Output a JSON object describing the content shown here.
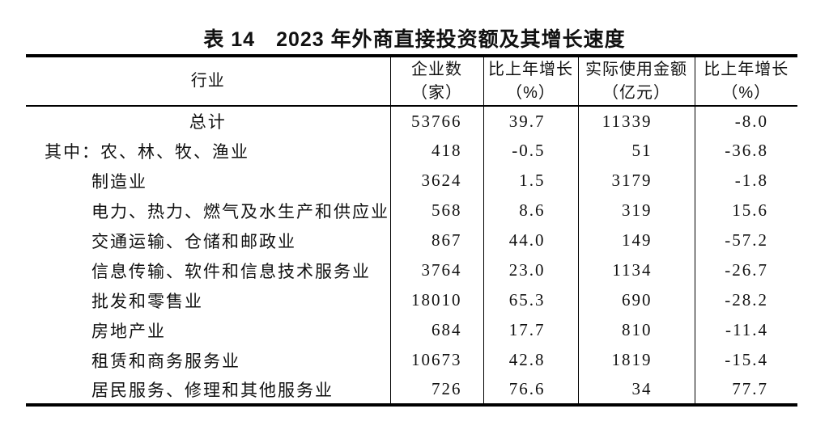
{
  "page": {
    "title": "表 14　2023 年外商直接投资额及其增长速度"
  },
  "table": {
    "columns": [
      {
        "label": "行业",
        "unit": ""
      },
      {
        "label": "企业数",
        "unit": "（家）"
      },
      {
        "label": "比上年增长",
        "unit": "（%）"
      },
      {
        "label": "实际使用金额",
        "unit": "（亿元）"
      },
      {
        "label": "比上年增长",
        "unit": "（%）"
      }
    ],
    "rows": [
      {
        "prefix": "",
        "industry": "总计",
        "enterprises": "53766",
        "growth_enterprises": "39.7",
        "amount": "11339",
        "growth_amount": "-8.0"
      },
      {
        "prefix": "其中：",
        "industry": "农、林、牧、渔业",
        "enterprises": "418",
        "growth_enterprises": "-0.5",
        "amount": "51",
        "growth_amount": "-36.8"
      },
      {
        "prefix": "",
        "industry": "制造业",
        "enterprises": "3624",
        "growth_enterprises": "1.5",
        "amount": "3179",
        "growth_amount": "-1.8"
      },
      {
        "prefix": "",
        "industry": "电力、热力、燃气及水生产和供应业",
        "enterprises": "568",
        "growth_enterprises": "8.6",
        "amount": "319",
        "growth_amount": "15.6"
      },
      {
        "prefix": "",
        "industry": "交通运输、仓储和邮政业",
        "enterprises": "867",
        "growth_enterprises": "44.0",
        "amount": "149",
        "growth_amount": "-57.2"
      },
      {
        "prefix": "",
        "industry": "信息传输、软件和信息技术服务业",
        "enterprises": "3764",
        "growth_enterprises": "23.0",
        "amount": "1134",
        "growth_amount": "-26.7"
      },
      {
        "prefix": "",
        "industry": "批发和零售业",
        "enterprises": "18010",
        "growth_enterprises": "65.3",
        "amount": "690",
        "growth_amount": "-28.2"
      },
      {
        "prefix": "",
        "industry": "房地产业",
        "enterprises": "684",
        "growth_enterprises": "17.7",
        "amount": "810",
        "growth_amount": "-11.4"
      },
      {
        "prefix": "",
        "industry": "租赁和商务服务业",
        "enterprises": "10673",
        "growth_enterprises": "42.8",
        "amount": "1819",
        "growth_amount": "-15.4"
      },
      {
        "prefix": "",
        "industry": "居民服务、修理和其他服务业",
        "enterprises": "726",
        "growth_enterprises": "76.6",
        "amount": "34",
        "growth_amount": "77.7"
      }
    ]
  }
}
